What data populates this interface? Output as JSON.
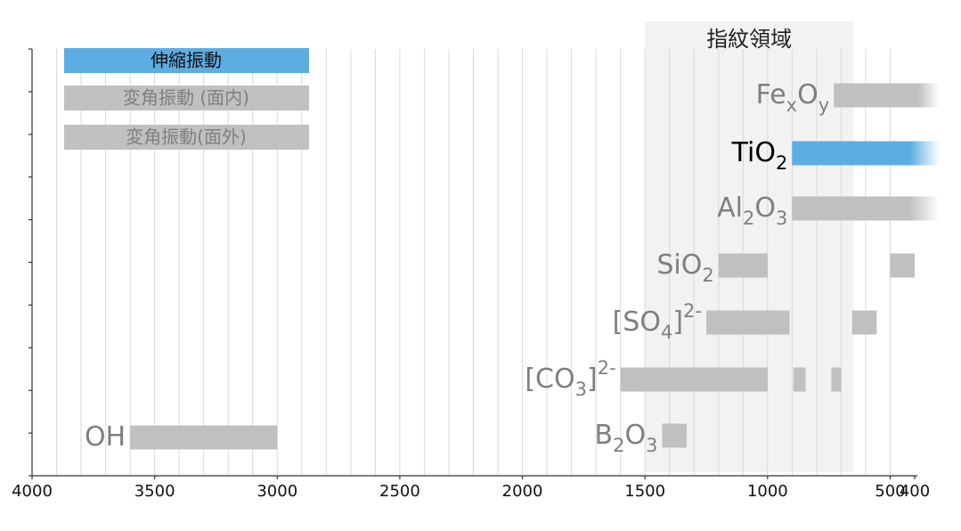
{
  "chart_data": {
    "type": "range",
    "xlim": [
      4000,
      400
    ],
    "xticks": [
      4000,
      3500,
      3000,
      2500,
      2000,
      1500,
      1000,
      500,
      400
    ],
    "grid_xticks": [
      3900,
      3800,
      3700,
      3600,
      3500,
      3400,
      3300,
      3200,
      3100,
      3000,
      2900,
      2800,
      2700,
      2600,
      2500,
      2400,
      2300,
      2200,
      2100,
      2000,
      1900,
      1800,
      1700,
      1600,
      1500,
      1400,
      1300,
      1200,
      1100,
      1000,
      900,
      800,
      700,
      600,
      500
    ],
    "grid": true,
    "region": {
      "label": "指紋領域",
      "range": [
        1500,
        650
      ]
    },
    "legend": [
      {
        "name": "伸縮振動",
        "color": "#5dade2"
      },
      {
        "name": "変角振動 (面内)",
        "color": "#c0c0c0"
      },
      {
        "name": "変角振動(面外)",
        "color": "#c0c0c0"
      }
    ],
    "rows": [
      {
        "label_parts": [
          {
            "text": "Fe"
          },
          {
            "text": "x",
            "pos": "sub"
          },
          {
            "text": "O"
          },
          {
            "text": "y",
            "pos": "sub"
          }
        ],
        "color": "#c0c0c0",
        "ranges": [
          [
            730,
            300
          ]
        ]
      },
      {
        "label_parts": [
          {
            "text": "TiO"
          },
          {
            "text": "2",
            "pos": "sub"
          }
        ],
        "color": "#5dade2",
        "ranges": [
          [
            900,
            300
          ]
        ]
      },
      {
        "label_parts": [
          {
            "text": "Al"
          },
          {
            "text": "2",
            "pos": "sub"
          },
          {
            "text": "O"
          },
          {
            "text": "3",
            "pos": "sub"
          }
        ],
        "color": "#c0c0c0",
        "ranges": [
          [
            900,
            300
          ]
        ]
      },
      {
        "label_parts": [
          {
            "text": "SiO"
          },
          {
            "text": "2",
            "pos": "sub"
          }
        ],
        "color": "#c0c0c0",
        "ranges": [
          [
            1200,
            1000
          ],
          [
            500,
            400
          ]
        ]
      },
      {
        "label_parts": [
          {
            "text": "[SO"
          },
          {
            "text": "4",
            "pos": "sub"
          },
          {
            "text": "]"
          },
          {
            "text": "2-",
            "pos": "super"
          }
        ],
        "color": "#c0c0c0",
        "ranges": [
          [
            1250,
            910
          ],
          [
            655,
            555
          ]
        ]
      },
      {
        "label_parts": [
          {
            "text": "[CO"
          },
          {
            "text": "3",
            "pos": "sub"
          },
          {
            "text": "]"
          },
          {
            "text": "2-",
            "pos": "super"
          }
        ],
        "color": "#c0c0c0",
        "ranges": [
          [
            1600,
            1000
          ],
          [
            895,
            845
          ],
          [
            740,
            700
          ]
        ]
      },
      {
        "label_parts": [
          {
            "text": "B"
          },
          {
            "text": "2",
            "pos": "sub"
          },
          {
            "text": "O"
          },
          {
            "text": "3",
            "pos": "sub"
          }
        ],
        "color": "#c0c0c0",
        "ranges": [
          [
            1430,
            1330
          ]
        ]
      },
      {
        "label_parts": [
          {
            "text": "OH"
          }
        ],
        "color": "#c0c0c0",
        "ranges": [
          [
            3600,
            3000
          ]
        ]
      }
    ]
  }
}
